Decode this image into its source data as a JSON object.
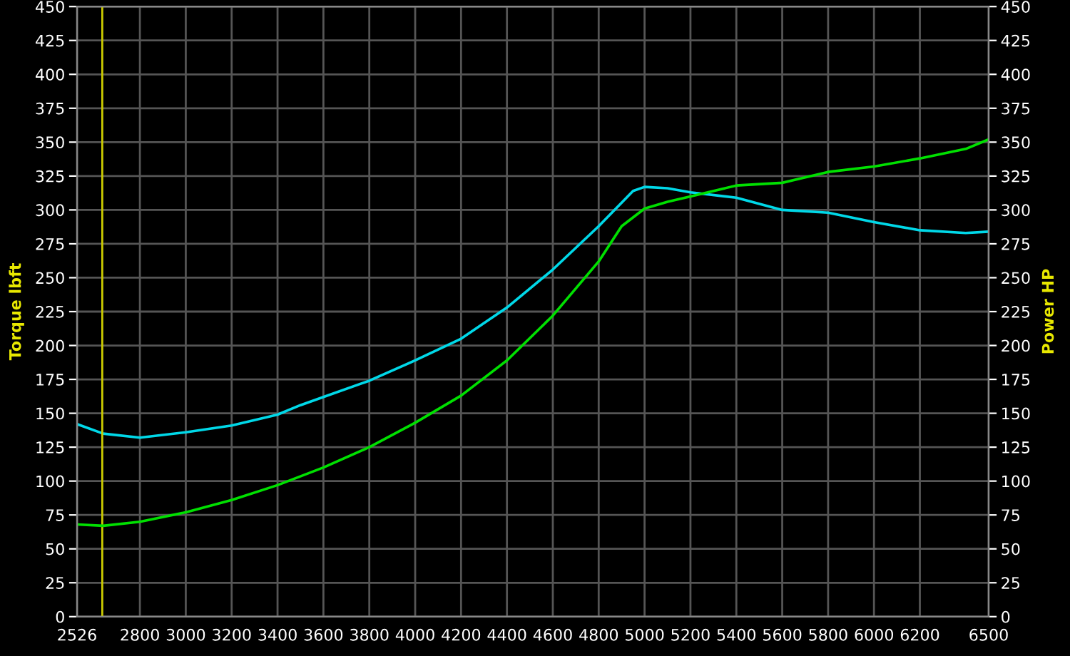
{
  "chart_data": {
    "type": "line",
    "ylabel": "Torque lbft",
    "y2label": "Power HP",
    "xlim": [
      2526,
      6500
    ],
    "xticks": [
      2526,
      2800,
      3000,
      3200,
      3400,
      3600,
      3800,
      4000,
      4200,
      4400,
      4600,
      4800,
      5000,
      5200,
      5400,
      5600,
      5800,
      6000,
      6200,
      6500
    ],
    "ylim": [
      0,
      450
    ],
    "yticks": [
      0,
      25,
      50,
      75,
      100,
      125,
      150,
      175,
      200,
      225,
      250,
      275,
      300,
      325,
      350,
      375,
      400,
      425,
      450
    ],
    "y2lim": [
      0,
      450
    ],
    "y2ticks": [
      0,
      25,
      50,
      75,
      100,
      125,
      150,
      175,
      200,
      225,
      250,
      275,
      300,
      325,
      350,
      375,
      400,
      425,
      450
    ],
    "grid": true,
    "legend": false,
    "ref_lines": [
      {
        "axis": "x",
        "value": 2636,
        "color": "#cccc00"
      }
    ],
    "series": [
      {
        "color": "#00d8e8",
        "x": [
          2526,
          2640,
          2800,
          3000,
          3200,
          3400,
          3500,
          3600,
          3800,
          4000,
          4200,
          4400,
          4600,
          4800,
          4950,
          5000,
          5100,
          5200,
          5400,
          5600,
          5800,
          6000,
          6200,
          6400,
          6500
        ],
        "values": [
          142,
          135,
          132,
          136,
          141,
          149,
          156,
          162,
          174,
          189,
          205,
          228,
          256,
          288,
          314,
          317,
          316,
          313,
          309,
          300,
          298,
          291,
          285,
          283,
          284
        ]
      },
      {
        "color": "#00e000",
        "axis": "y2",
        "x": [
          2526,
          2640,
          2800,
          3000,
          3200,
          3400,
          3600,
          3800,
          4000,
          4200,
          4400,
          4600,
          4800,
          4900,
          5000,
          5100,
          5200,
          5400,
          5600,
          5800,
          6000,
          6200,
          6400,
          6500
        ],
        "values": [
          68,
          67,
          70,
          77,
          86,
          97,
          110,
          125,
          143,
          163,
          189,
          222,
          262,
          288,
          301,
          306,
          310,
          318,
          320,
          328,
          332,
          338,
          345,
          352
        ]
      }
    ]
  }
}
